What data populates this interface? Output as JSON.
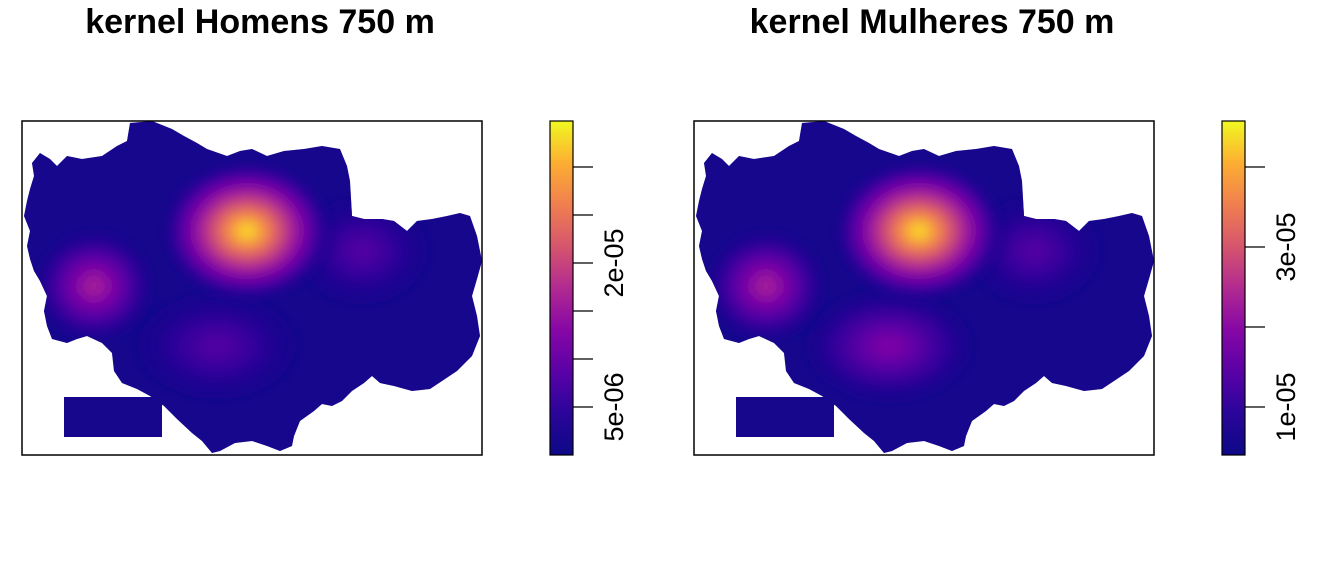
{
  "chart_data": [
    {
      "type": "heatmap",
      "title": "kernel Homens 750 m",
      "legend": {
        "position": "right",
        "colors": [
          "#0D0887",
          "#2A0599",
          "#5A01A6",
          "#8707A6",
          "#B12A90",
          "#D6556D",
          "#F07F4F",
          "#FDAE32",
          "#F0F921"
        ],
        "tick_labels": [
          "5e-06",
          "2e-05"
        ],
        "n_ticks": 6
      },
      "hotspots": [
        {
          "location": "center-north",
          "intensity": 1.0
        },
        {
          "location": "west",
          "intensity": 0.55
        },
        {
          "location": "south-center",
          "intensity": 0.3
        },
        {
          "location": "east",
          "intensity": 0.3
        }
      ],
      "axes_visible": false
    },
    {
      "type": "heatmap",
      "title": "kernel Mulheres 750 m",
      "legend": {
        "position": "right",
        "colors": [
          "#0D0887",
          "#2A0599",
          "#5A01A6",
          "#8707A6",
          "#B12A90",
          "#D6556D",
          "#F07F4F",
          "#FDAE32",
          "#F0F921"
        ],
        "tick_labels": [
          "1e-05",
          "3e-05"
        ],
        "n_ticks": 4
      },
      "hotspots": [
        {
          "location": "center-north",
          "intensity": 1.0
        },
        {
          "location": "west",
          "intensity": 0.5
        },
        {
          "location": "south-center",
          "intensity": 0.35
        },
        {
          "location": "east",
          "intensity": 0.25
        }
      ],
      "axes_visible": false
    }
  ]
}
